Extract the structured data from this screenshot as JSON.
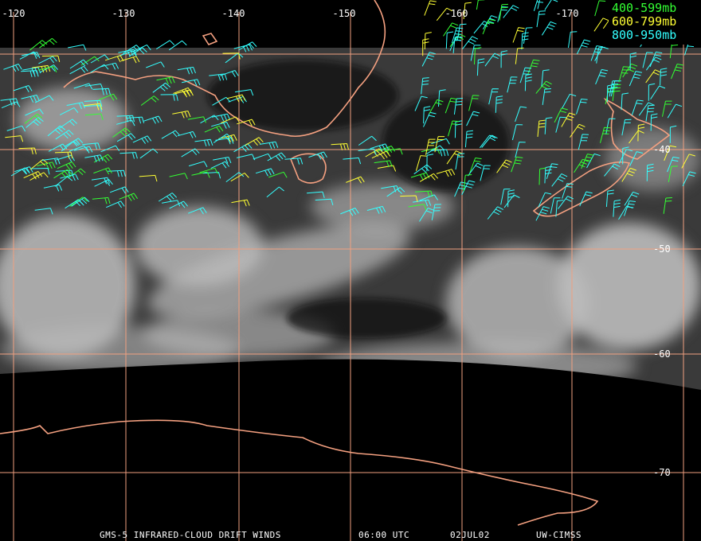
{
  "map": {
    "longitude_labels": [
      "-120",
      "-130",
      "-140",
      "-150",
      "-160",
      "-170"
    ],
    "latitude_labels": [
      "-40",
      "-50",
      "-60",
      "-70"
    ],
    "legend": [
      {
        "label": "400-599mb",
        "color": "#33ff33"
      },
      {
        "label": "600-799mb",
        "color": "#ffff33"
      },
      {
        "label": "800-950mb",
        "color": "#33ffff"
      }
    ],
    "footer": [
      "GMS-5 INFRARED-CLOUD DRIFT WINDS",
      "06:00 UTC",
      "02JUL02",
      "UW-CIMSS"
    ]
  }
}
